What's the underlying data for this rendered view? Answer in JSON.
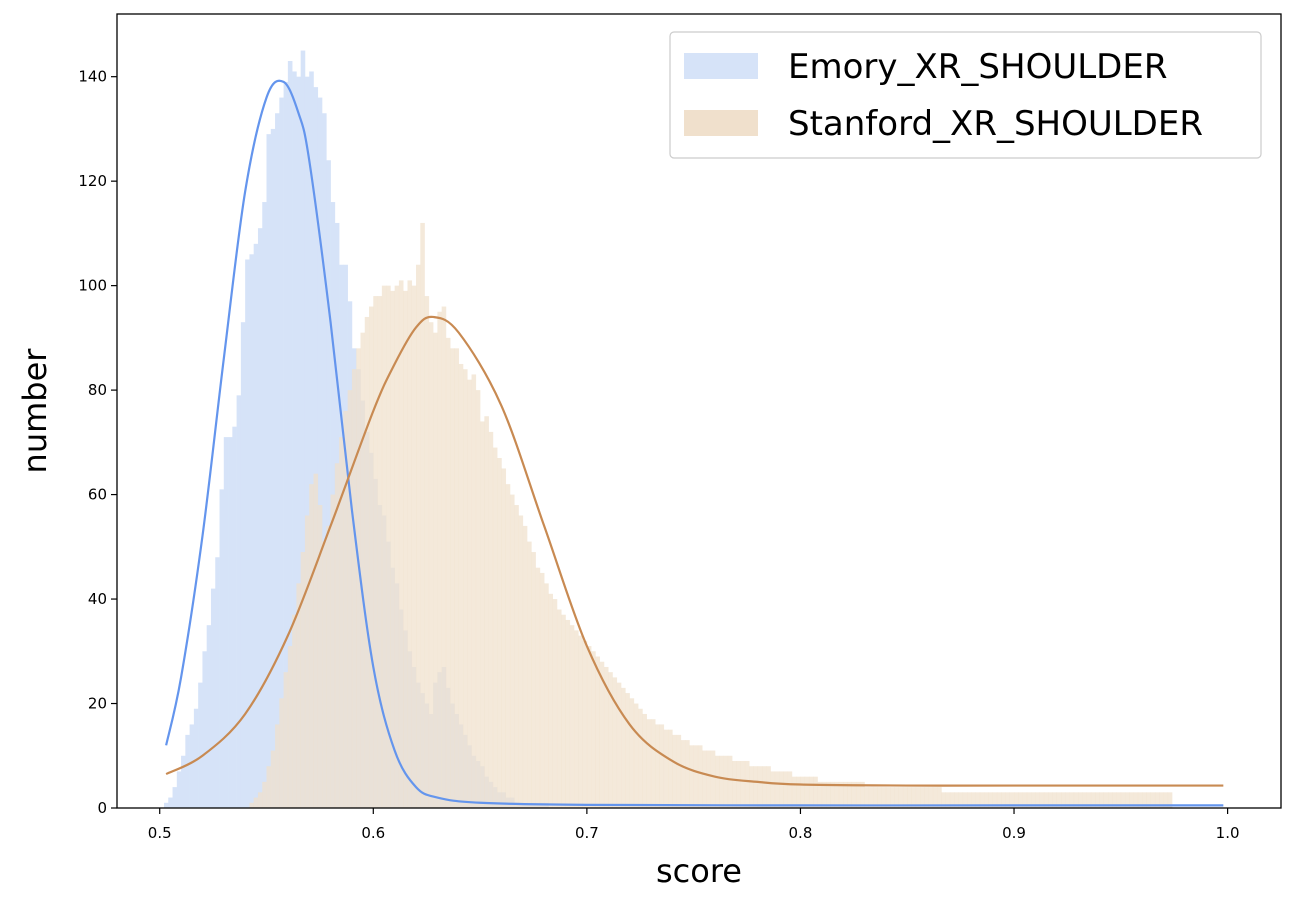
{
  "chart_data": {
    "type": "histogram",
    "title": "",
    "xlabel": "score",
    "ylabel": "number",
    "xlim": [
      0.48,
      1.025
    ],
    "ylim": [
      0,
      152
    ],
    "xticks": [
      0.5,
      0.6,
      0.7,
      0.8,
      0.9,
      1.0
    ],
    "xtick_labels": [
      "0.5",
      "0.6",
      "0.7",
      "0.8",
      "0.9",
      "1.0"
    ],
    "yticks": [
      0,
      20,
      40,
      60,
      80,
      100,
      120,
      140
    ],
    "ytick_labels": [
      "0",
      "20",
      "40",
      "60",
      "80",
      "100",
      "120",
      "140"
    ],
    "grid": false,
    "legend_position": "top-right",
    "bin_width": 0.002,
    "series": [
      {
        "name": "Emory_XR_SHOULDER",
        "bar_color": "#d6e3f8",
        "curve_color": "#6495ed",
        "bins_start": 0.502,
        "values": [
          1,
          2,
          4,
          7,
          10,
          14,
          16,
          19,
          24,
          30,
          35,
          42,
          48,
          61,
          71,
          71,
          73,
          79,
          93,
          105,
          106,
          108,
          111,
          116,
          129,
          130,
          133,
          136,
          139,
          143,
          141,
          140,
          145,
          140,
          141,
          138,
          136,
          133,
          124,
          116,
          112,
          104,
          104,
          97,
          88,
          84,
          78,
          72,
          68,
          63,
          58,
          56,
          51,
          46,
          43,
          38,
          34,
          30,
          27,
          24,
          22,
          20,
          18,
          24,
          26,
          27,
          23,
          20,
          18,
          16,
          14,
          12,
          10,
          9,
          8,
          6,
          5,
          4,
          3,
          3,
          2,
          2,
          1,
          1,
          1,
          1,
          1,
          1,
          1,
          1
        ],
        "fit_curve": {
          "x": [
            0.503,
            0.51,
            0.52,
            0.53,
            0.54,
            0.55,
            0.558,
            0.565,
            0.57,
            0.58,
            0.59,
            0.6,
            0.61,
            0.62,
            0.63,
            0.65,
            0.7,
            0.8,
            0.9,
            0.998
          ],
          "y": [
            12,
            25,
            52,
            86,
            118,
            136,
            139,
            133,
            124,
            93,
            57,
            27,
            11,
            4,
            2,
            1,
            0.6,
            0.5,
            0.5,
            0.5
          ]
        }
      },
      {
        "name": "Stanford_XR_SHOULDER",
        "bar_color": "#f0e0cc",
        "curve_color": "#c88a52",
        "bins_start": 0.542,
        "values": [
          1,
          2,
          3,
          5,
          8,
          11,
          16,
          21,
          26,
          31,
          37,
          43,
          49,
          56,
          62,
          64,
          58,
          51,
          54,
          60,
          66,
          71,
          76,
          80,
          84,
          88,
          91,
          94,
          96,
          98,
          98,
          100,
          100,
          99,
          100,
          101,
          99,
          101,
          100,
          104,
          112,
          98,
          93,
          91,
          95,
          96,
          90,
          88,
          88,
          85,
          84,
          82,
          83,
          80,
          74,
          75,
          72,
          69,
          67,
          65,
          62,
          60,
          58,
          56,
          54,
          51,
          49,
          46,
          45,
          43,
          41,
          40,
          38,
          37,
          36,
          35,
          34,
          33,
          32,
          31,
          30,
          29,
          28,
          27,
          26,
          25,
          24,
          23,
          22,
          21,
          20,
          19,
          18,
          17,
          17,
          16,
          16,
          15,
          15,
          14,
          14,
          13,
          13,
          12,
          12,
          12,
          11,
          11,
          11,
          10,
          10,
          10,
          10,
          9,
          9,
          9,
          9,
          8,
          8,
          8,
          8,
          8,
          7,
          7,
          7,
          7,
          7,
          6,
          6,
          6,
          6,
          6,
          6,
          5,
          5,
          5,
          5,
          5,
          5,
          5,
          5,
          5,
          5,
          5,
          4,
          4,
          4,
          4,
          4,
          4,
          4,
          4,
          4,
          4,
          4,
          4,
          4,
          4,
          4,
          4,
          4,
          4,
          3,
          3,
          3,
          3,
          3,
          3,
          3,
          3,
          3,
          3,
          3,
          3,
          3,
          3,
          3,
          3,
          3,
          3,
          3,
          3,
          3,
          3,
          3,
          3,
          3,
          3,
          3,
          3,
          3,
          3,
          3,
          3,
          3,
          3,
          3,
          3,
          3,
          3,
          3,
          3,
          3,
          3,
          3,
          3,
          3,
          3,
          3,
          3,
          3,
          3,
          3,
          3,
          3,
          3
        ],
        "fit_curve": {
          "x": [
            0.503,
            0.52,
            0.54,
            0.56,
            0.58,
            0.6,
            0.61,
            0.62,
            0.628,
            0.64,
            0.66,
            0.68,
            0.7,
            0.72,
            0.74,
            0.76,
            0.78,
            0.8,
            0.85,
            0.9,
            0.998
          ],
          "y": [
            6.5,
            10,
            18,
            33,
            54,
            76,
            85,
            92,
            94,
            91,
            77,
            54,
            31,
            16,
            9,
            6,
            5,
            4.5,
            4.3,
            4.3,
            4.3
          ]
        }
      }
    ]
  }
}
